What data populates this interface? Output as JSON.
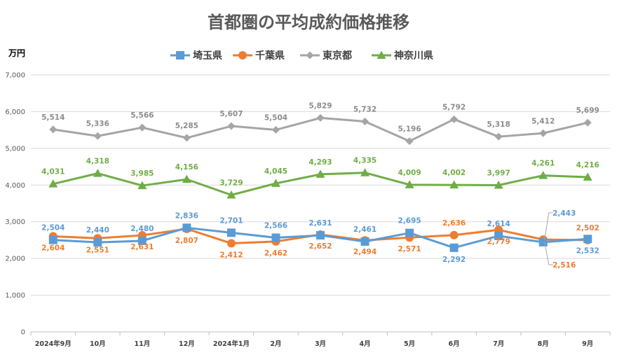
{
  "chart_data": {
    "type": "line",
    "title": "首都圏の平均成約価格推移",
    "ylabel": "万円",
    "ylim": [
      0,
      7000
    ],
    "yticks": [
      0,
      1000,
      2000,
      3000,
      4000,
      5000,
      6000,
      7000
    ],
    "ytick_labels": [
      "0",
      "1,000",
      "2,000",
      "3,000",
      "4,000",
      "5,000",
      "6,000",
      "7,000"
    ],
    "grid": true,
    "legend_position": "top",
    "categories": [
      "2024年9月",
      "10月",
      "11月",
      "12月",
      "2024年1月",
      "2月",
      "3月",
      "4月",
      "5月",
      "6月",
      "7月",
      "8月",
      "9月"
    ],
    "series": [
      {
        "name": "埼玉県",
        "color": "#5b9bd5",
        "marker": "square",
        "values": [
          2504,
          2440,
          2480,
          2836,
          2701,
          2566,
          2631,
          2461,
          2695,
          2292,
          2614,
          2443,
          2532
        ],
        "labels": [
          "2,504",
          "2,440",
          "2,480",
          "2,836",
          "2,701",
          "2,566",
          "2,631",
          "2,461",
          "2,695",
          "2,292",
          "2,614",
          "2,443",
          "2,532"
        ]
      },
      {
        "name": "千葉県",
        "color": "#ed7d31",
        "marker": "circle",
        "values": [
          2604,
          2551,
          2631,
          2807,
          2412,
          2462,
          2652,
          2494,
          2571,
          2636,
          2779,
          2516,
          2502
        ],
        "labels": [
          "2,604",
          "2,551",
          "2,631",
          "2,807",
          "2,412",
          "2,462",
          "2,652",
          "2,494",
          "2,571",
          "2,636",
          "2,779",
          "2,516",
          "2,502"
        ]
      },
      {
        "name": "東京都",
        "color": "#a5a5a5",
        "marker": "diamond",
        "values": [
          5514,
          5336,
          5566,
          5285,
          5607,
          5504,
          5829,
          5732,
          5196,
          5792,
          5318,
          5412,
          5699
        ],
        "labels": [
          "5,514",
          "5,336",
          "5,566",
          "5,285",
          "5,607",
          "5,504",
          "5,829",
          "5,732",
          "5,196",
          "5,792",
          "5,318",
          "5,412",
          "5,699"
        ]
      },
      {
        "name": "神奈川県",
        "color": "#70ad47",
        "marker": "triangle",
        "values": [
          4031,
          4318,
          3985,
          4156,
          3729,
          4045,
          4293,
          4335,
          4009,
          4002,
          3997,
          4261,
          4216
        ],
        "labels": [
          "4,031",
          "4,318",
          "3,985",
          "4,156",
          "3,729",
          "4,045",
          "4,293",
          "4,335",
          "4,009",
          "4,002",
          "3,997",
          "4,261",
          "4,216"
        ]
      }
    ]
  }
}
